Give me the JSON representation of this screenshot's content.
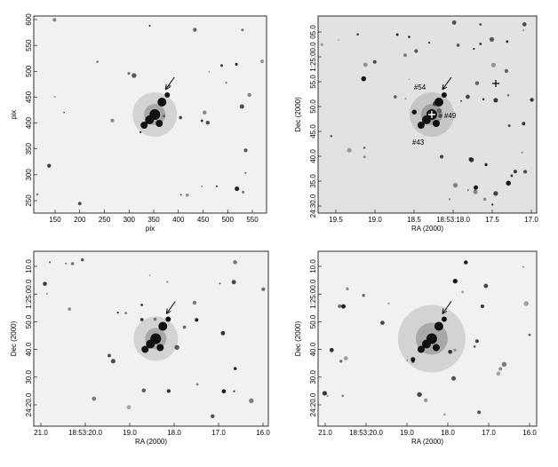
{
  "panels": [
    {
      "x_label": "pix",
      "y_label": "pix",
      "xticks": [
        150,
        200,
        250,
        300,
        350,
        400,
        450,
        500,
        550
      ],
      "yticks": [
        250,
        300,
        350,
        400,
        450,
        500,
        550,
        600
      ],
      "annotations": []
    },
    {
      "x_label": "RA (2000)",
      "y_label": "Dec (2000)",
      "xticks": [
        "19.5",
        "19.0",
        "18.5",
        "18:53:18.0",
        "17.5",
        "17.0"
      ],
      "yticks": [
        "24:30.0",
        "35.0",
        "40.0",
        "45.0",
        "50.0",
        "55.0",
        "1:25:00.0",
        "05.0"
      ],
      "annotations": [
        "#54",
        "#49",
        "#43"
      ]
    },
    {
      "x_label": "RA (2000)",
      "y_label": "Dec (2000)",
      "xticks": [
        "21.0",
        "18:53:20.0",
        "19.0",
        "18.0",
        "17.0",
        "16.0"
      ],
      "yticks": [
        "24:20.0",
        "30.0",
        "40.0",
        "50.0",
        "1:25:00.0",
        "10.0"
      ],
      "annotations": []
    },
    {
      "x_label": "RA (2000)",
      "y_label": "Dec (2000)",
      "xticks": [
        "21.0",
        "18:53:20.0",
        "19.0",
        "18.0",
        "17.0",
        "16.0"
      ],
      "yticks": [
        "24:20.0",
        "30.0",
        "40.0",
        "50.0",
        "1:25:00.0",
        "10.0"
      ],
      "annotations": []
    }
  ]
}
